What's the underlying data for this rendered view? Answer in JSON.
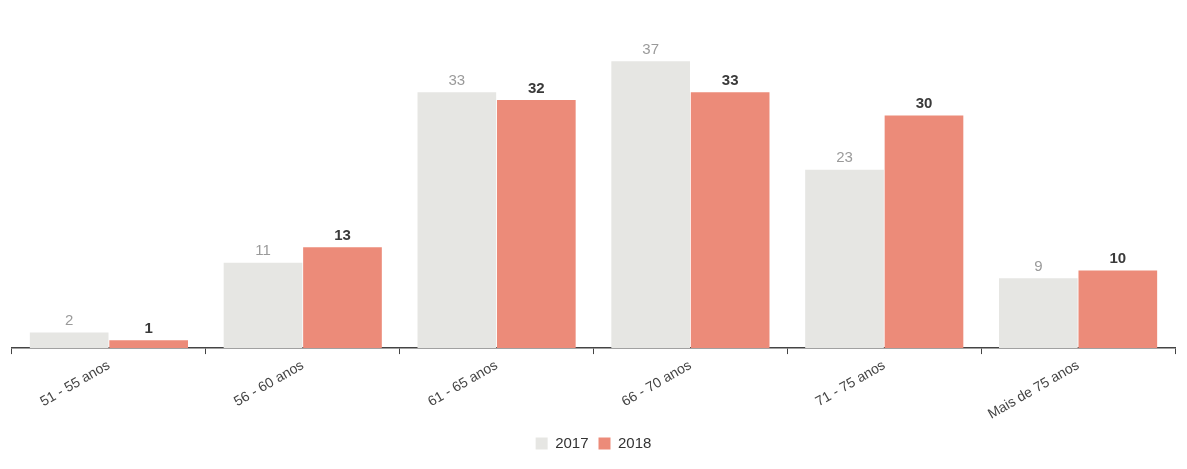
{
  "chart_data": {
    "type": "bar",
    "categories": [
      "51 - 55 anos",
      "56 - 60 anos",
      "61 - 65 anos",
      "66 - 70 anos",
      "71 - 75 anos",
      "Mais de 75 anos"
    ],
    "series": [
      {
        "name": "2017",
        "color": "#e6e6e3",
        "values": [
          2,
          11,
          33,
          37,
          23,
          9
        ]
      },
      {
        "name": "2018",
        "color": "#ec8b79",
        "values": [
          1,
          13,
          32,
          33,
          30,
          10
        ]
      }
    ],
    "data_labels": true,
    "legend": "bottom",
    "grid": false
  }
}
